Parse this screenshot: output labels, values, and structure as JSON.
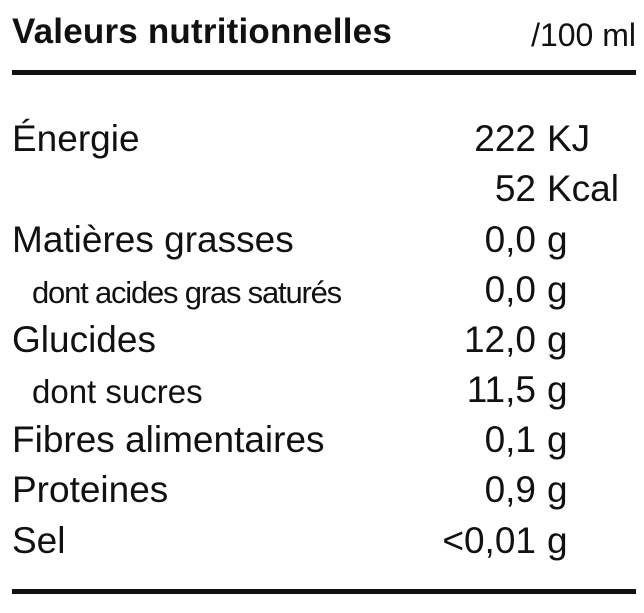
{
  "header": {
    "title": "Valeurs nutritionnelles",
    "per_unit": "/100 ml"
  },
  "rows": [
    {
      "label": "Énergie",
      "value": "222",
      "unit": "KJ"
    },
    {
      "label": "",
      "value": "52",
      "unit": "Kcal"
    },
    {
      "label": "Matières grasses",
      "value": "0,0",
      "unit": "g"
    },
    {
      "label": "dont acides gras saturés",
      "value": "0,0",
      "unit": "g"
    },
    {
      "label": "Glucides",
      "value": "12,0",
      "unit": "g"
    },
    {
      "label": "dont sucres",
      "value": "11,5",
      "unit": "g"
    },
    {
      "label": "Fibres alimentaires",
      "value": "0,1",
      "unit": "g"
    },
    {
      "label": "Proteines",
      "value": "0,9",
      "unit": "g"
    },
    {
      "label": "Sel",
      "value": "<0,01",
      "unit": "g"
    }
  ],
  "colors": {
    "text": "#111111",
    "background": "#ffffff",
    "rule": "#111111"
  }
}
